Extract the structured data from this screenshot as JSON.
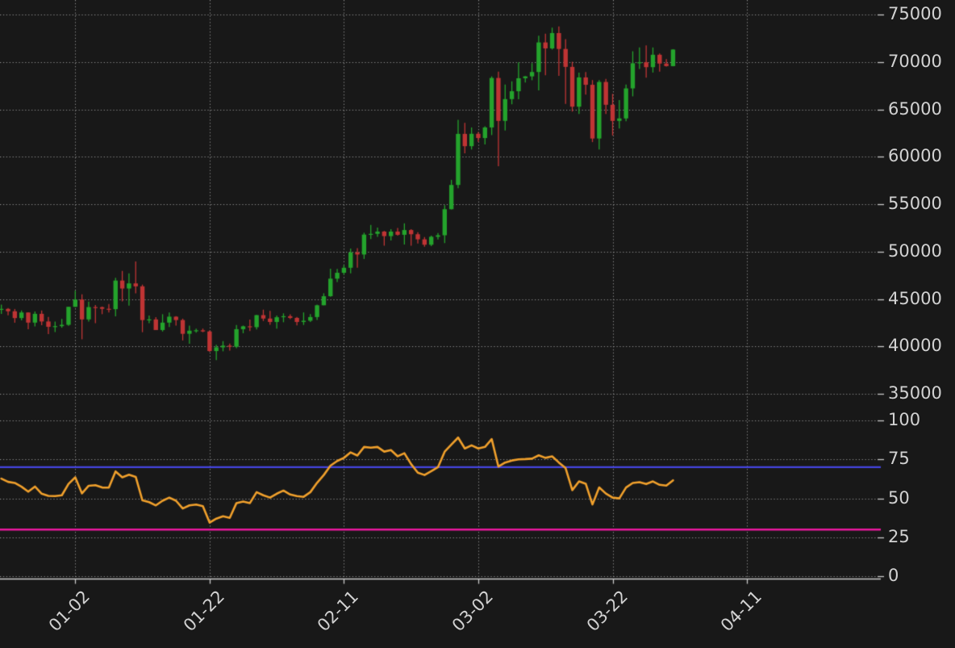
{
  "chart_data": {
    "type": "candlestick",
    "title": "",
    "legend": "none",
    "grid": "dotted",
    "x_ticks": {
      "labels": [
        "01-02",
        "01-22",
        "02-11",
        "03-02",
        "03-22",
        "04-11"
      ],
      "candle_index": [
        11,
        31,
        51,
        71,
        91,
        111
      ]
    },
    "price_panel": {
      "yticks": [
        75000,
        70000,
        65000,
        60000,
        55000,
        50000,
        45000,
        40000,
        35000
      ],
      "ylim": [
        33500,
        76500
      ],
      "candles_ohlc": [
        [
          43870,
          44400,
          43440,
          43960
        ],
        [
          43960,
          44050,
          43290,
          43710
        ],
        [
          43710,
          43950,
          42500,
          42990
        ],
        [
          42990,
          43800,
          42740,
          43580
        ],
        [
          43580,
          43590,
          41810,
          42510
        ],
        [
          42510,
          43680,
          42100,
          43440
        ],
        [
          43440,
          43790,
          42240,
          42630
        ],
        [
          42630,
          43110,
          41300,
          42070
        ],
        [
          42070,
          42610,
          41520,
          42140
        ],
        [
          42140,
          42900,
          41970,
          42280
        ],
        [
          42280,
          44180,
          42180,
          44180
        ],
        [
          44180,
          45880,
          44150,
          44950
        ],
        [
          44950,
          45500,
          40750,
          42850
        ],
        [
          42850,
          44730,
          42610,
          44150
        ],
        [
          44150,
          44360,
          42450,
          44140
        ],
        [
          44140,
          44210,
          43400,
          43970
        ],
        [
          43970,
          44480,
          43570,
          43930
        ],
        [
          43930,
          47250,
          43180,
          46950
        ],
        [
          46950,
          47970,
          44750,
          46110
        ],
        [
          46110,
          47700,
          44300,
          46650
        ],
        [
          46650,
          48970,
          45610,
          46340
        ],
        [
          46340,
          46520,
          41500,
          42780
        ],
        [
          42780,
          43260,
          42440,
          42850
        ],
        [
          42850,
          43080,
          41720,
          41730
        ],
        [
          41730,
          43400,
          41570,
          42510
        ],
        [
          42510,
          43580,
          42050,
          43140
        ],
        [
          43140,
          43200,
          42200,
          42780
        ],
        [
          42780,
          42930,
          40630,
          41330
        ],
        [
          41330,
          42200,
          40280,
          41660
        ],
        [
          41660,
          41870,
          41460,
          41700
        ],
        [
          41700,
          41880,
          41500,
          41580
        ],
        [
          41580,
          41690,
          39430,
          39510
        ],
        [
          39510,
          40180,
          38560,
          39900
        ],
        [
          39900,
          40560,
          39480,
          40080
        ],
        [
          40080,
          40300,
          39550,
          39960
        ],
        [
          39960,
          42250,
          39820,
          41820
        ],
        [
          41820,
          42200,
          41390,
          42120
        ],
        [
          42120,
          42840,
          41620,
          42030
        ],
        [
          42030,
          43330,
          41800,
          43300
        ],
        [
          43300,
          43880,
          42680,
          42940
        ],
        [
          42940,
          43750,
          42280,
          42580
        ],
        [
          42580,
          43260,
          41880,
          43080
        ],
        [
          43080,
          43490,
          42550,
          43190
        ],
        [
          43190,
          43380,
          42880,
          43010
        ],
        [
          43010,
          43120,
          42220,
          42580
        ],
        [
          42580,
          43590,
          42260,
          42710
        ],
        [
          42710,
          43400,
          42570,
          43100
        ],
        [
          43100,
          44400,
          42790,
          44340
        ],
        [
          44340,
          45610,
          44340,
          45300
        ],
        [
          45300,
          48200,
          45240,
          47150
        ],
        [
          47150,
          48170,
          46800,
          47770
        ],
        [
          47770,
          48590,
          47560,
          48300
        ],
        [
          48300,
          50330,
          47710,
          49920
        ],
        [
          49920,
          50370,
          48300,
          49700
        ],
        [
          49700,
          52000,
          49230,
          51800
        ],
        [
          51800,
          52820,
          51320,
          51880
        ],
        [
          51880,
          52540,
          51570,
          52120
        ],
        [
          52120,
          52190,
          50630,
          51640
        ],
        [
          51640,
          52380,
          51170,
          52120
        ],
        [
          52120,
          52490,
          51680,
          51780
        ],
        [
          51780,
          52990,
          50750,
          52280
        ],
        [
          52280,
          52370,
          50630,
          51840
        ],
        [
          51840,
          52060,
          50860,
          51300
        ],
        [
          51300,
          51550,
          50520,
          50730
        ],
        [
          50730,
          51700,
          50590,
          51570
        ],
        [
          51570,
          51960,
          51280,
          51730
        ],
        [
          51730,
          54910,
          50900,
          54480
        ],
        [
          54480,
          57580,
          54450,
          57040
        ],
        [
          57040,
          63910,
          56690,
          62430
        ],
        [
          62430,
          63590,
          60370,
          61130
        ],
        [
          61130,
          63110,
          60780,
          62440
        ],
        [
          62440,
          62630,
          61600,
          61990
        ],
        [
          61990,
          63230,
          61320,
          63110
        ],
        [
          63110,
          68500,
          62300,
          68330
        ],
        [
          68330,
          69000,
          59005,
          63800
        ],
        [
          63800,
          67640,
          62780,
          66100
        ],
        [
          66100,
          67980,
          65550,
          66930
        ],
        [
          66930,
          69990,
          66080,
          68300
        ],
        [
          68300,
          68540,
          67860,
          68500
        ],
        [
          68500,
          69890,
          68090,
          68960
        ],
        [
          68960,
          72800,
          67020,
          72080
        ],
        [
          72080,
          73000,
          68620,
          71450
        ],
        [
          71450,
          73640,
          71330,
          73070
        ],
        [
          73070,
          73780,
          68550,
          71390
        ],
        [
          71390,
          72420,
          65600,
          69500
        ],
        [
          69500,
          70040,
          64780,
          65300
        ],
        [
          65300,
          68900,
          64530,
          68390
        ],
        [
          68390,
          68960,
          66570,
          67610
        ],
        [
          67610,
          68110,
          61560,
          61940
        ],
        [
          61940,
          68100,
          60780,
          67910
        ],
        [
          67910,
          68240,
          64530,
          65500
        ],
        [
          65500,
          66650,
          62260,
          63800
        ],
        [
          63800,
          66000,
          63000,
          64060
        ],
        [
          64060,
          67630,
          63770,
          67230
        ],
        [
          67230,
          71150,
          66390,
          69880
        ],
        [
          69880,
          71560,
          69280,
          69990
        ],
        [
          69990,
          71770,
          68360,
          69470
        ],
        [
          69470,
          71550,
          68900,
          70780
        ],
        [
          70780,
          70920,
          69010,
          69850
        ],
        [
          69850,
          70320,
          69540,
          69580
        ],
        [
          69580,
          71370,
          69560,
          71330
        ]
      ]
    },
    "rsi_panel": {
      "yticks": [
        100,
        75,
        50,
        25,
        0
      ],
      "ylim": [
        0,
        100
      ],
      "overbought_level": 70,
      "oversold_level": 30,
      "values": [
        62.7,
        60.6,
        59.9,
        57.5,
        54.3,
        57.6,
        53.0,
        51.6,
        51.5,
        52.0,
        59.3,
        63.5,
        53.2,
        58.1,
        58.5,
        57.0,
        56.9,
        67.3,
        63.5,
        65.2,
        63.8,
        48.7,
        47.6,
        45.5,
        48.5,
        50.5,
        48.5,
        43.5,
        45.5,
        46.0,
        45.0,
        34.5,
        37.0,
        38.5,
        37.5,
        47.0,
        48.0,
        47.0,
        54.0,
        52.0,
        50.5,
        53.0,
        55.0,
        52.5,
        51.5,
        51.0,
        54.0,
        60.0,
        65.0,
        71.0,
        74.0,
        76.0,
        79.5,
        77.5,
        83.0,
        82.5,
        83.0,
        80.0,
        81.0,
        77.0,
        79.0,
        72.0,
        66.5,
        65.0,
        67.5,
        70.0,
        80.0,
        84.5,
        89.0,
        82.0,
        84.0,
        82.0,
        83.0,
        88.0,
        70.4,
        73.0,
        74.3,
        75.0,
        75.2,
        75.5,
        77.6,
        76.0,
        77.0,
        73.0,
        69.4,
        55.3,
        60.9,
        59.4,
        46.1,
        57.0,
        53.1,
        50.5,
        50.0,
        57.0,
        59.9,
        60.4,
        59.2,
        60.9,
        58.7,
        58.2,
        61.6
      ]
    },
    "colors": {
      "background": "#181818",
      "up_candle": "#24a32c",
      "down_candle": "#bf3434",
      "rsi_line": "#f0a02c",
      "overbought_line": "#4444e0",
      "oversold_line": "#e8189e",
      "grid": "#8c8c8c",
      "axis": "#c9c9c9",
      "label": "#d2d2d2"
    }
  }
}
